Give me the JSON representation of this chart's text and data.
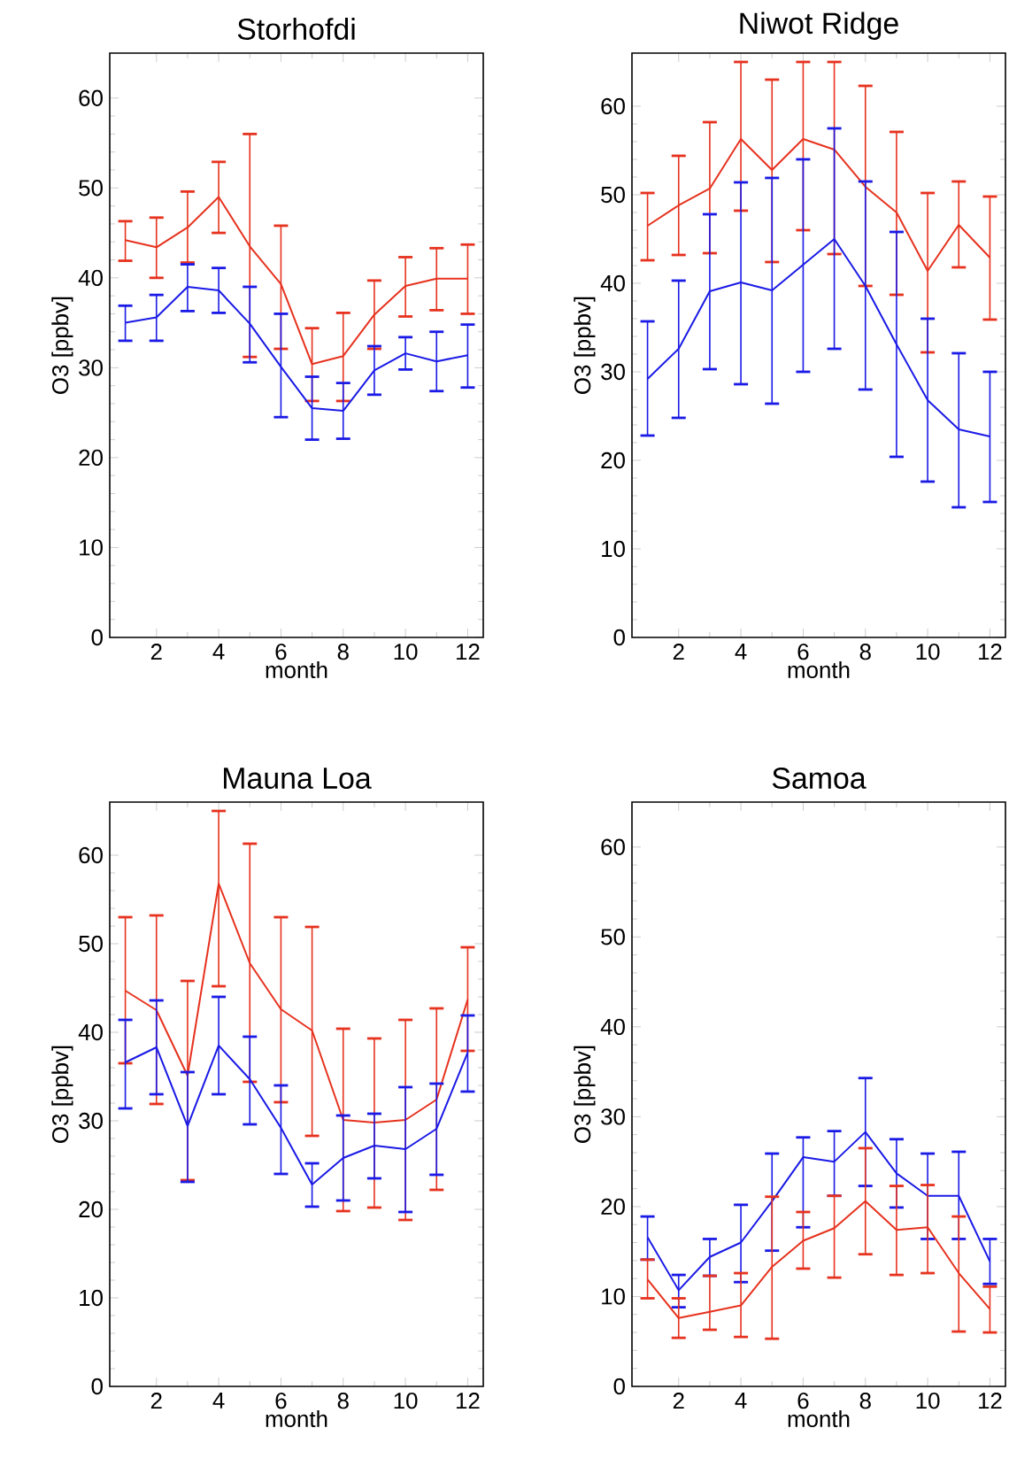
{
  "chart_data": [
    {
      "type": "line",
      "title": "Storhofdi",
      "xlabel": "month",
      "ylabel": "O3 [ppbv]",
      "xlim": [
        0.5,
        12.5
      ],
      "ylim": [
        0,
        65
      ],
      "xticks": [
        2,
        4,
        6,
        8,
        10,
        12
      ],
      "yticks": [
        0,
        10,
        20,
        30,
        40,
        50,
        60
      ],
      "x": [
        1,
        2,
        3,
        4,
        5,
        6,
        7,
        8,
        9,
        10,
        11,
        12
      ],
      "series": [
        {
          "color": "#e6321e",
          "values": [
            44.2,
            43.4,
            45.6,
            49.0,
            43.5,
            39.3,
            30.4,
            31.3,
            35.9,
            39.1,
            39.9,
            39.9
          ],
          "errors": [
            [
              41.9,
              46.3
            ],
            [
              40.0,
              46.7
            ],
            [
              41.7,
              49.6
            ],
            [
              45.0,
              52.9
            ],
            [
              31.2,
              56.0
            ],
            [
              32.1,
              45.8
            ],
            [
              26.3,
              34.4
            ],
            [
              26.3,
              36.1
            ],
            [
              32.1,
              39.7
            ],
            [
              35.7,
              42.3
            ],
            [
              36.4,
              43.3
            ],
            [
              36.0,
              43.7
            ]
          ]
        },
        {
          "color": "#1a1ae6",
          "values": [
            35.0,
            35.6,
            39.0,
            38.6,
            34.9,
            30.1,
            25.5,
            25.2,
            29.7,
            31.6,
            30.7,
            31.4
          ],
          "errors": [
            [
              33.0,
              36.9
            ],
            [
              33.0,
              38.1
            ],
            [
              36.3,
              41.5
            ],
            [
              36.1,
              41.1
            ],
            [
              30.6,
              39.0
            ],
            [
              24.5,
              36.0
            ],
            [
              22.0,
              29.0
            ],
            [
              22.1,
              28.3
            ],
            [
              27.0,
              32.4
            ],
            [
              29.8,
              33.4
            ],
            [
              27.4,
              34.0
            ],
            [
              27.8,
              34.8
            ]
          ]
        }
      ]
    },
    {
      "type": "line",
      "title": "Niwot Ridge",
      "xlabel": "month",
      "ylabel": "O3 [ppbv]",
      "xlim": [
        0.5,
        12.5
      ],
      "ylim": [
        0,
        66
      ],
      "xticks": [
        2,
        4,
        6,
        8,
        10,
        12
      ],
      "yticks": [
        0,
        10,
        20,
        30,
        40,
        50,
        60
      ],
      "x": [
        1,
        2,
        3,
        4,
        5,
        6,
        7,
        8,
        9,
        10,
        11,
        12
      ],
      "series": [
        {
          "color": "#e6321e",
          "values": [
            46.5,
            48.8,
            50.7,
            56.3,
            52.8,
            56.3,
            55.1,
            50.9,
            48.0,
            41.4,
            46.6,
            42.9
          ],
          "errors": [
            [
              42.6,
              50.2
            ],
            [
              43.2,
              54.4
            ],
            [
              43.4,
              58.2
            ],
            [
              48.2,
              65
            ],
            [
              42.4,
              63.0
            ],
            [
              46.0,
              65
            ],
            [
              43.3,
              65
            ],
            [
              39.7,
              62.3
            ],
            [
              38.7,
              57.1
            ],
            [
              32.2,
              50.2
            ],
            [
              41.8,
              51.5
            ],
            [
              35.9,
              49.8
            ]
          ]
        },
        {
          "color": "#1a1ae6",
          "values": [
            29.2,
            32.6,
            39.1,
            40.1,
            39.2,
            42.1,
            45.0,
            39.7,
            33.1,
            26.8,
            23.5,
            22.7
          ],
          "errors": [
            [
              22.8,
              35.7
            ],
            [
              24.8,
              40.3
            ],
            [
              30.3,
              47.8
            ],
            [
              28.6,
              51.4
            ],
            [
              26.4,
              51.9
            ],
            [
              30.0,
              54.0
            ],
            [
              32.6,
              57.5
            ],
            [
              28.0,
              51.5
            ],
            [
              20.4,
              45.8
            ],
            [
              17.6,
              36.0
            ],
            [
              14.7,
              32.1
            ],
            [
              15.3,
              30.0
            ]
          ]
        }
      ]
    },
    {
      "type": "line",
      "title": "Mauna Loa",
      "xlabel": "month",
      "ylabel": "O3 [ppbv]",
      "xlim": [
        0.5,
        12.5
      ],
      "ylim": [
        0,
        66
      ],
      "xticks": [
        2,
        4,
        6,
        8,
        10,
        12
      ],
      "yticks": [
        0,
        10,
        20,
        30,
        40,
        50,
        60
      ],
      "x": [
        1,
        2,
        3,
        4,
        5,
        6,
        7,
        8,
        9,
        10,
        11,
        12
      ],
      "series": [
        {
          "color": "#e6321e",
          "values": [
            44.7,
            42.5,
            35.1,
            56.8,
            47.8,
            42.6,
            40.2,
            30.1,
            29.8,
            30.1,
            32.4,
            43.7
          ],
          "errors": [
            [
              36.5,
              53.0
            ],
            [
              31.9,
              53.2
            ],
            [
              23.3,
              45.8
            ],
            [
              45.2,
              65
            ],
            [
              34.4,
              61.3
            ],
            [
              32.1,
              53.0
            ],
            [
              28.3,
              51.9
            ],
            [
              19.8,
              40.4
            ],
            [
              20.2,
              39.3
            ],
            [
              18.8,
              41.4
            ],
            [
              22.2,
              42.7
            ],
            [
              37.9,
              49.6
            ]
          ]
        },
        {
          "color": "#1a1ae6",
          "values": [
            36.6,
            38.3,
            29.4,
            38.5,
            34.7,
            29.2,
            22.8,
            25.8,
            27.2,
            26.8,
            29.1,
            37.7
          ],
          "errors": [
            [
              31.4,
              41.4
            ],
            [
              33.0,
              43.6
            ],
            [
              23.1,
              35.5
            ],
            [
              33.0,
              44.0
            ],
            [
              29.6,
              39.5
            ],
            [
              24.0,
              34.0
            ],
            [
              20.3,
              25.2
            ],
            [
              21.0,
              30.6
            ],
            [
              23.5,
              30.8
            ],
            [
              19.7,
              33.8
            ],
            [
              23.9,
              34.2
            ],
            [
              33.3,
              41.9
            ]
          ]
        }
      ]
    },
    {
      "type": "line",
      "title": "Samoa",
      "xlabel": "month",
      "ylabel": "O3 [ppbv]",
      "xlim": [
        0.5,
        12.5
      ],
      "ylim": [
        0,
        65
      ],
      "xticks": [
        2,
        4,
        6,
        8,
        10,
        12
      ],
      "yticks": [
        0,
        10,
        20,
        30,
        40,
        50,
        60
      ],
      "x": [
        1,
        2,
        3,
        4,
        5,
        6,
        7,
        8,
        9,
        10,
        11,
        12
      ],
      "series": [
        {
          "color": "#1a1ae6",
          "values": [
            16.6,
            10.7,
            14.4,
            16.0,
            20.6,
            25.5,
            25.0,
            28.3,
            23.7,
            21.2,
            21.2,
            13.9
          ],
          "errors": [
            [
              14.1,
              18.9
            ],
            [
              8.8,
              12.4
            ],
            [
              12.3,
              16.4
            ],
            [
              11.6,
              20.2
            ],
            [
              15.1,
              25.9
            ],
            [
              17.7,
              27.7
            ],
            [
              21.2,
              28.4
            ],
            [
              22.3,
              34.3
            ],
            [
              19.9,
              27.5
            ],
            [
              16.4,
              25.9
            ],
            [
              16.4,
              26.1
            ],
            [
              11.4,
              16.4
            ]
          ]
        },
        {
          "color": "#e6321e",
          "values": [
            11.9,
            7.6,
            8.3,
            9.0,
            13.3,
            16.2,
            17.6,
            20.6,
            17.4,
            17.7,
            12.6,
            8.6
          ],
          "errors": [
            [
              9.8,
              14.1
            ],
            [
              5.4,
              9.8
            ],
            [
              6.3,
              12.3
            ],
            [
              5.5,
              12.6
            ],
            [
              5.3,
              21.1
            ],
            [
              13.1,
              19.4
            ],
            [
              12.1,
              21.2
            ],
            [
              14.7,
              26.5
            ],
            [
              12.4,
              22.3
            ],
            [
              12.6,
              22.4
            ],
            [
              6.1,
              18.9
            ],
            [
              6.0,
              11.1
            ]
          ]
        }
      ]
    }
  ]
}
